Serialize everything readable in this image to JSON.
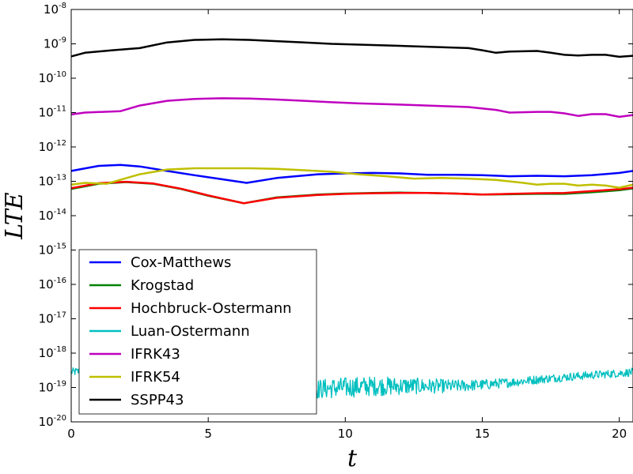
{
  "chart_data": {
    "type": "line",
    "xlabel": "t",
    "ylabel": "LTE",
    "xlim": [
      0,
      20.5
    ],
    "ylim": [
      1e-20,
      1e-08
    ],
    "yscale": "log",
    "xticks": [
      0,
      5,
      10,
      15,
      20
    ],
    "yticks": [
      {
        "value": 1e-20,
        "base": "10",
        "exp": "-20"
      },
      {
        "value": 1e-19,
        "base": "10",
        "exp": "-19"
      },
      {
        "value": 1e-18,
        "base": "10",
        "exp": "-18"
      },
      {
        "value": 1e-17,
        "base": "10",
        "exp": "-17"
      },
      {
        "value": 1e-16,
        "base": "10",
        "exp": "-16"
      },
      {
        "value": 1e-15,
        "base": "10",
        "exp": "-15"
      },
      {
        "value": 1e-14,
        "base": "10",
        "exp": "-14"
      },
      {
        "value": 1e-13,
        "base": "10",
        "exp": "-13"
      },
      {
        "value": 1e-12,
        "base": "10",
        "exp": "-12"
      },
      {
        "value": 1e-11,
        "base": "10",
        "exp": "-11"
      },
      {
        "value": 1e-10,
        "base": "10",
        "exp": "-10"
      },
      {
        "value": 1e-09,
        "base": "10",
        "exp": "-9"
      },
      {
        "value": 1e-08,
        "base": "10",
        "exp": "-8"
      }
    ],
    "grid": false,
    "legend_position": "lower-left",
    "series": [
      {
        "name": "Cox-Matthews",
        "color": "#0000ff",
        "x": [
          0,
          1,
          1.8,
          2.5,
          3.5,
          4.5,
          5.5,
          6.4,
          7.5,
          9,
          10,
          11,
          12,
          13,
          14,
          15,
          16,
          17,
          18,
          19,
          20,
          20.5
        ],
        "y": [
          2e-13,
          2.8e-13,
          3e-13,
          2.7e-13,
          2e-13,
          1.5e-13,
          1.15e-13,
          9e-14,
          1.25e-13,
          1.6e-13,
          1.7e-13,
          1.75e-13,
          1.7e-13,
          1.55e-13,
          1.55e-13,
          1.5e-13,
          1.4e-13,
          1.45e-13,
          1.4e-13,
          1.5e-13,
          1.75e-13,
          2e-13
        ]
      },
      {
        "name": "Krogstad",
        "color": "#008000",
        "x": [
          0,
          1,
          2,
          3,
          4,
          5,
          6.3,
          7.5,
          9,
          10,
          11,
          12,
          13,
          14,
          15,
          16,
          17,
          18,
          19,
          20,
          20.5
        ],
        "y": [
          6e-14,
          8.5e-14,
          9.5e-14,
          8.5e-14,
          6e-14,
          3.8e-14,
          2.3e-14,
          3.4e-14,
          4.1e-14,
          4.4e-14,
          4.6e-14,
          4.7e-14,
          4.6e-14,
          4.4e-14,
          4.1e-14,
          4.2e-14,
          4.3e-14,
          4.3e-14,
          4.8e-14,
          5.5e-14,
          6.2e-14
        ]
      },
      {
        "name": "Hochbruck-Ostermann",
        "color": "#ff0000",
        "x": [
          0,
          1,
          2,
          3,
          4,
          5,
          6.3,
          7.5,
          9,
          10,
          11,
          12,
          13,
          14,
          15,
          16,
          17,
          18,
          19,
          20,
          20.5
        ],
        "y": [
          6.3e-14,
          8.8e-14,
          9.7e-14,
          8.6e-14,
          6.1e-14,
          3.9e-14,
          2.3e-14,
          3.3e-14,
          4e-14,
          4.3e-14,
          4.5e-14,
          4.6e-14,
          4.6e-14,
          4.4e-14,
          4.1e-14,
          4.3e-14,
          4.5e-14,
          4.6e-14,
          5.2e-14,
          5.9e-14,
          6.5e-14
        ]
      },
      {
        "name": "Luan-Ostermann",
        "color": "#00bfbf",
        "noise": true,
        "x": [
          0,
          1,
          2,
          3,
          4,
          5,
          6,
          7,
          8,
          9,
          10,
          11,
          12,
          13,
          14,
          15,
          16,
          17,
          18,
          19,
          20,
          20.5
        ],
        "y": [
          2.8e-19,
          3.3e-19,
          3e-19,
          2.4e-19,
          1.8e-19,
          1.4e-19,
          1.2e-19,
          1e-19,
          9e-20,
          9e-20,
          1e-19,
          1.1e-19,
          1.1e-19,
          1.1e-19,
          1.1e-19,
          1.2e-19,
          1.4e-19,
          1.7e-19,
          2e-19,
          2.3e-19,
          2.6e-19,
          2.8e-19
        ]
      },
      {
        "name": "IFRK43",
        "color": "#bf00bf",
        "x": [
          0,
          0.5,
          1.8,
          2.5,
          3.5,
          4.5,
          5.5,
          6.5,
          7.5,
          8.5,
          9.5,
          10.5,
          11.5,
          12.5,
          13.5,
          14.5,
          15.5,
          16,
          17,
          17.5,
          18,
          18.5,
          19,
          19.5,
          20,
          20.5
        ],
        "y": [
          8.8e-12,
          1e-11,
          1.1e-11,
          1.6e-11,
          2.2e-11,
          2.5e-11,
          2.6e-11,
          2.55e-11,
          2.4e-11,
          2.2e-11,
          2e-11,
          1.85e-11,
          1.75e-11,
          1.65e-11,
          1.55e-11,
          1.45e-11,
          1.2e-11,
          1e-11,
          1.05e-11,
          1.05e-11,
          9.5e-12,
          8e-12,
          9e-12,
          9e-12,
          7.5e-12,
          8.5e-12
        ]
      },
      {
        "name": "IFRK54",
        "color": "#bfbf00",
        "x": [
          0,
          0.5,
          1.3,
          2.5,
          3.5,
          4.5,
          5.5,
          6.5,
          7.5,
          8.5,
          9.5,
          10.5,
          11.5,
          12.5,
          13.5,
          14.5,
          15.5,
          16.5,
          17,
          17.5,
          18,
          18.5,
          19,
          19.5,
          20,
          20.5
        ],
        "y": [
          8e-14,
          9e-14,
          8.5e-14,
          1.6e-13,
          2.2e-13,
          2.4e-13,
          2.4e-13,
          2.4e-13,
          2.3e-13,
          2.1e-13,
          1.9e-13,
          1.6e-13,
          1.4e-13,
          1.2e-13,
          1.25e-13,
          1.2e-13,
          1.1e-13,
          9e-14,
          8e-14,
          8.5e-14,
          8.5e-14,
          7.5e-14,
          8e-14,
          7.5e-14,
          6.5e-14,
          8e-14
        ]
      },
      {
        "name": "SSPP43",
        "color": "#000000",
        "x": [
          0,
          0.5,
          1.5,
          2.5,
          3.5,
          4.5,
          5.5,
          6.5,
          7.5,
          8.5,
          9.5,
          10.5,
          11.5,
          12.5,
          13.5,
          14.5,
          15,
          15.5,
          16,
          17,
          17.5,
          18,
          18.5,
          19,
          19.5,
          20,
          20.5
        ],
        "y": [
          4.3e-10,
          5.5e-10,
          6.5e-10,
          7.5e-10,
          1.1e-09,
          1.3e-09,
          1.35e-09,
          1.3e-09,
          1.2e-09,
          1.1e-09,
          1e-09,
          9.5e-10,
          9e-10,
          8.5e-10,
          8e-10,
          7.5e-10,
          6.5e-10,
          5.5e-10,
          6e-10,
          6.2e-10,
          5.5e-10,
          4.8e-10,
          4.6e-10,
          4.8e-10,
          4.8e-10,
          4.2e-10,
          4.5e-10
        ]
      }
    ]
  }
}
